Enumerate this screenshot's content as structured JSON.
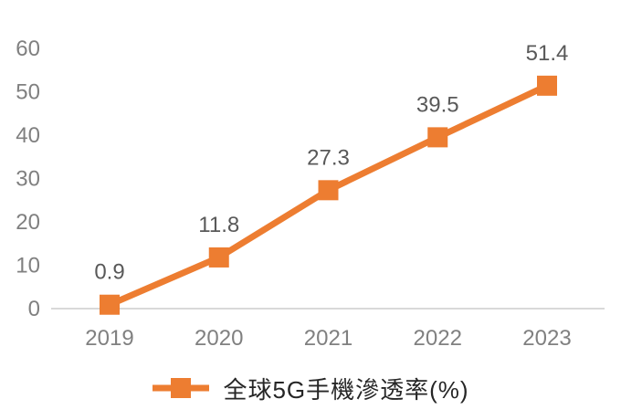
{
  "chart_data": {
    "type": "line",
    "title": "",
    "xlabel": "",
    "ylabel": "",
    "categories": [
      "2019",
      "2020",
      "2021",
      "2022",
      "2023"
    ],
    "series": [
      {
        "name": "全球5G手機滲透率(%)",
        "values": [
          0.9,
          11.8,
          27.3,
          39.5,
          51.4
        ],
        "data_labels": [
          "0.9",
          "11.8",
          "27.3",
          "39.5",
          "51.4"
        ]
      }
    ],
    "y_ticks": [
      0,
      10,
      20,
      30,
      40,
      50,
      60
    ],
    "ylim": [
      0,
      60
    ],
    "grid": false,
    "marker": "square",
    "legend_position": "bottom",
    "colors": {
      "series": "#ED7D31",
      "axis_line": "#D9D9D9",
      "tick_label": "#808080",
      "data_label": "#595959",
      "legend_text": "#262626"
    }
  }
}
